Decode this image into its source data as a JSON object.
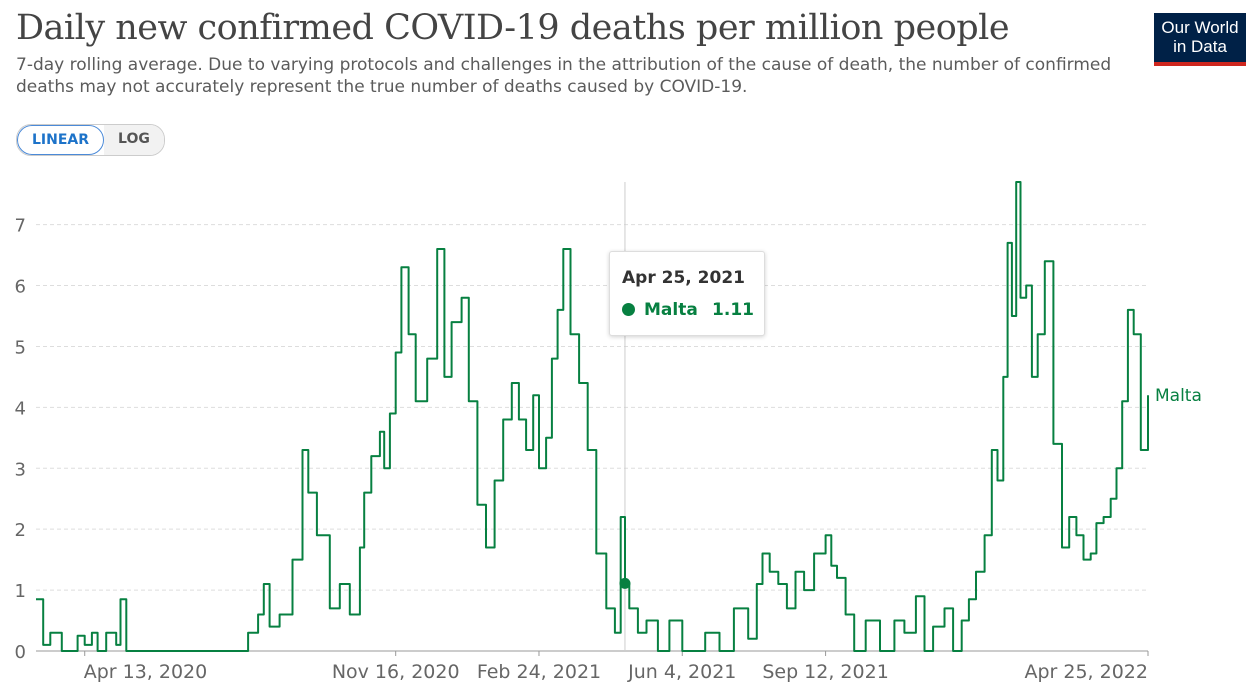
{
  "title": "Daily new confirmed COVID-19 deaths per million people",
  "subtitle": "7-day rolling average. Due to varying protocols and challenges in the attribution of the cause of death, the number of confirmed deaths may not accurately represent the true number of deaths caused by COVID-19.",
  "logo": {
    "line1": "Our World",
    "line2": "in Data"
  },
  "scale_toggle": {
    "linear": "LINEAR",
    "log": "LOG",
    "active": "linear"
  },
  "tooltip": {
    "date": "Apr 25, 2021",
    "entity": "Malta",
    "value": "1.11"
  },
  "colors": {
    "series": "#078041",
    "grid": "#dddddd",
    "axis": "#666666"
  },
  "chart_data": {
    "type": "line",
    "title": "Daily new confirmed COVID-19 deaths per million people",
    "x_tick_labels": [
      "Apr 13, 2020",
      "Nov 16, 2020",
      "Feb 24, 2021",
      "Jun 4, 2021",
      "Sep 12, 2021",
      "Apr 25, 2022"
    ],
    "y_ticks": [
      0,
      1,
      2,
      3,
      4,
      5,
      6,
      7
    ],
    "ylim": [
      0,
      7.7
    ],
    "xlim": [
      "2020-03-10",
      "2022-04-25"
    ],
    "grid": "horizontal dashed",
    "series": [
      {
        "name": "Malta",
        "x": [
          "2020-03-10",
          "2020-03-15",
          "2020-03-20",
          "2020-03-28",
          "2020-04-08",
          "2020-04-13",
          "2020-04-18",
          "2020-04-22",
          "2020-04-28",
          "2020-05-05",
          "2020-05-08",
          "2020-05-12",
          "2020-05-20",
          "2020-06-01",
          "2020-07-01",
          "2020-07-30",
          "2020-08-05",
          "2020-08-12",
          "2020-08-16",
          "2020-08-20",
          "2020-08-27",
          "2020-09-05",
          "2020-09-12",
          "2020-09-16",
          "2020-09-22",
          "2020-10-01",
          "2020-10-08",
          "2020-10-15",
          "2020-10-22",
          "2020-10-25",
          "2020-10-30",
          "2020-11-05",
          "2020-11-08",
          "2020-11-12",
          "2020-11-16",
          "2020-11-20",
          "2020-11-25",
          "2020-11-30",
          "2020-12-08",
          "2020-12-15",
          "2020-12-20",
          "2020-12-25",
          "2021-01-01",
          "2021-01-06",
          "2021-01-12",
          "2021-01-18",
          "2021-01-24",
          "2021-01-30",
          "2021-02-05",
          "2021-02-10",
          "2021-02-15",
          "2021-02-20",
          "2021-02-24",
          "2021-03-01",
          "2021-03-05",
          "2021-03-09",
          "2021-03-13",
          "2021-03-18",
          "2021-03-24",
          "2021-03-30",
          "2021-04-05",
          "2021-04-12",
          "2021-04-18",
          "2021-04-22",
          "2021-04-25",
          "2021-04-28",
          "2021-05-04",
          "2021-05-10",
          "2021-05-18",
          "2021-05-26",
          "2021-06-04",
          "2021-06-12",
          "2021-06-20",
          "2021-06-30",
          "2021-07-10",
          "2021-07-20",
          "2021-07-26",
          "2021-07-30",
          "2021-08-04",
          "2021-08-10",
          "2021-08-16",
          "2021-08-22",
          "2021-08-28",
          "2021-09-04",
          "2021-09-12",
          "2021-09-16",
          "2021-09-20",
          "2021-09-26",
          "2021-10-02",
          "2021-10-10",
          "2021-10-20",
          "2021-10-30",
          "2021-11-06",
          "2021-11-14",
          "2021-11-20",
          "2021-11-26",
          "2021-12-04",
          "2021-12-10",
          "2021-12-16",
          "2021-12-21",
          "2021-12-26",
          "2022-01-01",
          "2022-01-06",
          "2022-01-10",
          "2022-01-14",
          "2022-01-17",
          "2022-01-20",
          "2022-01-23",
          "2022-01-26",
          "2022-01-30",
          "2022-02-03",
          "2022-02-07",
          "2022-02-12",
          "2022-02-18",
          "2022-02-24",
          "2022-03-01",
          "2022-03-06",
          "2022-03-11",
          "2022-03-16",
          "2022-03-20",
          "2022-03-25",
          "2022-03-30",
          "2022-04-03",
          "2022-04-07",
          "2022-04-11",
          "2022-04-15",
          "2022-04-20",
          "2022-04-25"
        ],
        "y": [
          0.85,
          0.1,
          0.3,
          0,
          0.25,
          0.1,
          0.3,
          0,
          0.3,
          0.1,
          0.85,
          0,
          0,
          0,
          0,
          0,
          0.3,
          0.6,
          1.1,
          0.4,
          0.6,
          1.5,
          3.3,
          2.6,
          1.9,
          0.7,
          1.1,
          0.6,
          1.7,
          2.6,
          3.2,
          3.6,
          3.0,
          3.9,
          4.9,
          6.3,
          5.2,
          4.1,
          4.8,
          6.6,
          4.5,
          5.4,
          5.8,
          4.1,
          2.4,
          1.7,
          2.8,
          3.8,
          4.4,
          3.8,
          3.3,
          4.2,
          3.0,
          3.5,
          4.8,
          5.6,
          6.6,
          5.2,
          4.4,
          3.3,
          1.6,
          0.7,
          0.3,
          2.2,
          1.11,
          0.7,
          0.3,
          0.5,
          0,
          0.5,
          0,
          0,
          0.3,
          0,
          0.7,
          0.2,
          1.1,
          1.6,
          1.3,
          1.1,
          0.7,
          1.3,
          1.0,
          1.6,
          1.9,
          1.4,
          1.2,
          0.6,
          0,
          0.5,
          0,
          0.5,
          0.3,
          0.9,
          0,
          0.4,
          0.7,
          0,
          0.5,
          0.85,
          1.3,
          1.9,
          3.3,
          2.8,
          4.5,
          6.7,
          5.5,
          7.7,
          5.8,
          6.0,
          4.5,
          5.2,
          6.4,
          3.4,
          1.7,
          2.2,
          1.9,
          1.5,
          1.6,
          2.1,
          2.2,
          2.5,
          3.0,
          4.1,
          5.6,
          5.2,
          3.3,
          4.2
        ]
      }
    ]
  }
}
